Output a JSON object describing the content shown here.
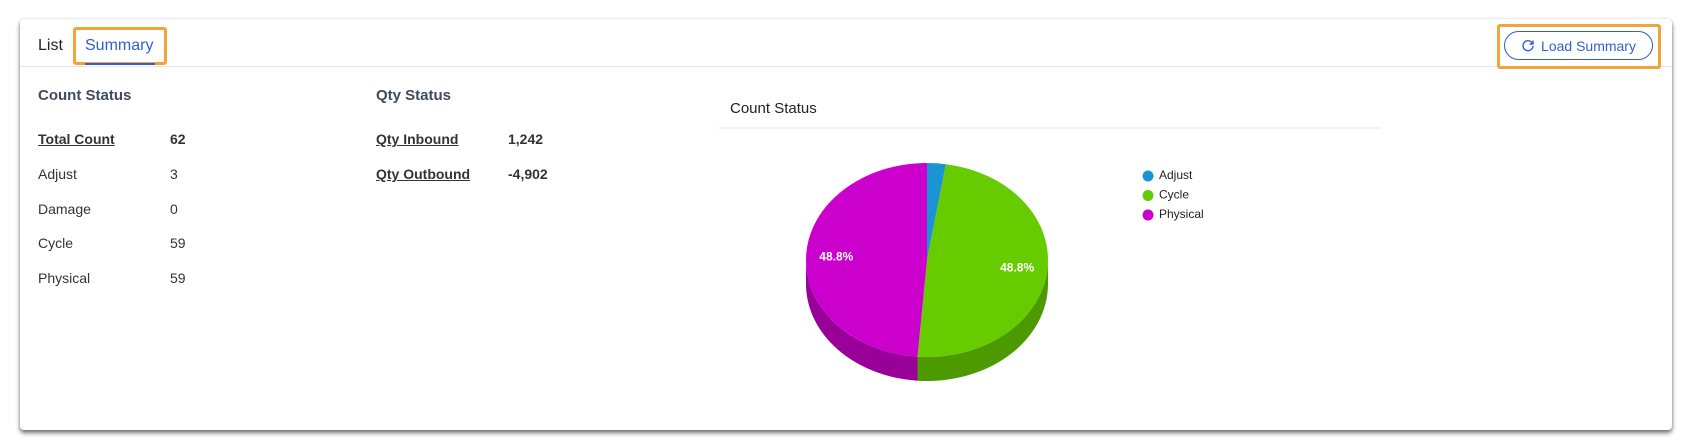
{
  "tabs": [
    "List",
    "Summary"
  ],
  "button": "Load Summary",
  "count_status": {
    "title": "Count Status",
    "rows": [
      [
        "Total Count",
        "62"
      ],
      [
        "Adjust",
        "3"
      ],
      [
        "Damage",
        "0"
      ],
      [
        "Cycle",
        "59"
      ],
      [
        "Physical",
        "59"
      ]
    ]
  },
  "qty_status": {
    "title": "Qty Status",
    "rows": [
      [
        "Qty Inbound",
        "1,242"
      ],
      [
        "Qty Outbound",
        "-4,902"
      ]
    ]
  },
  "chart_data": {
    "type": "pie",
    "title": "Count Status",
    "categories": [
      "Adjust",
      "Cycle",
      "Physical"
    ],
    "values": [
      2.5,
      48.8,
      48.8
    ],
    "value_labels": [
      null,
      "48.8%",
      "48.8%"
    ],
    "colors": [
      "#1a95d3",
      "#66cc00",
      "#cc00cc"
    ],
    "legend": "right"
  }
}
